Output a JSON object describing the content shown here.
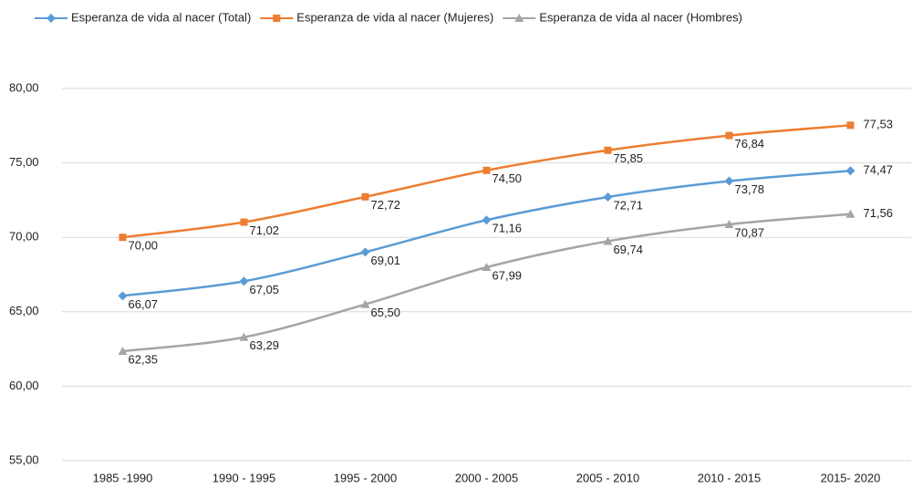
{
  "chart_data": {
    "type": "line",
    "categories": [
      "1985 -1990",
      "1990 - 1995",
      "1995 - 2000",
      "2000 - 2005",
      "2005 - 2010",
      "2010 - 2015",
      "2015- 2020"
    ],
    "series": [
      {
        "name": "Esperanza de vida al nacer (Total)",
        "color": "#5b9bd5",
        "marker": "diamond",
        "values": [
          66.07,
          67.05,
          69.01,
          71.16,
          72.71,
          73.78,
          74.47
        ],
        "value_labels": [
          "66,07",
          "67,05",
          "69,01",
          "71,16",
          "72,71",
          "73,78",
          "74,47"
        ]
      },
      {
        "name": "Esperanza de vida al nacer (Mujeres)",
        "color": "#ed7d31",
        "marker": "square",
        "values": [
          70.0,
          71.02,
          72.72,
          74.5,
          75.85,
          76.84,
          77.53
        ],
        "value_labels": [
          "70,00",
          "71,02",
          "72,72",
          "74,50",
          "75,85",
          "76,84",
          "77,53"
        ]
      },
      {
        "name": "Esperanza de vida al nacer (Hombres)",
        "color": "#a5a5a5",
        "marker": "triangle",
        "values": [
          62.35,
          63.29,
          65.5,
          67.99,
          69.74,
          70.87,
          71.56
        ],
        "value_labels": [
          "62,35",
          "63,29",
          "65,50",
          "67,99",
          "69,74",
          "70,87",
          "71,56"
        ]
      }
    ],
    "ylim": [
      55,
      80
    ],
    "yticks": [
      {
        "value": 55,
        "label": "55,00"
      },
      {
        "value": 60,
        "label": "60,00"
      },
      {
        "value": 65,
        "label": "65,00"
      },
      {
        "value": 70,
        "label": "70,00"
      },
      {
        "value": 75,
        "label": "75,00"
      },
      {
        "value": 80,
        "label": "80,00"
      }
    ],
    "grid": true,
    "legend": "top"
  }
}
